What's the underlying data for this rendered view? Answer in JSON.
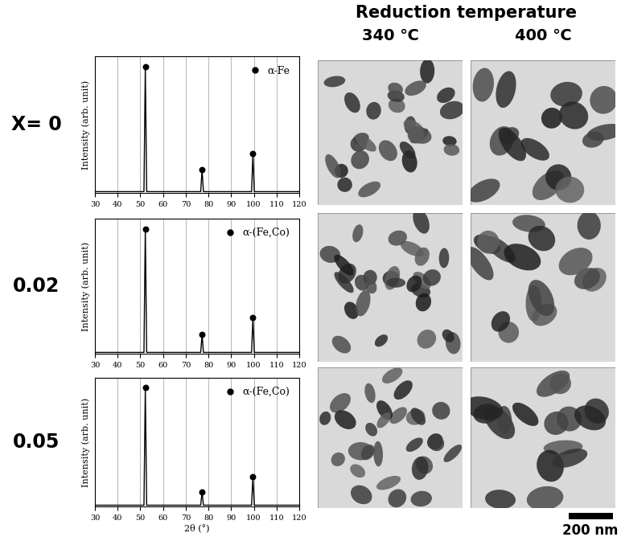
{
  "chart_data": [
    {
      "type": "line",
      "row_label": "X= 0",
      "ylabel": "Intensity (arb. unit)",
      "xlabel": null,
      "xlim": [
        30,
        120
      ],
      "xticks": [
        30,
        40,
        50,
        60,
        70,
        80,
        90,
        100,
        110,
        120
      ],
      "ylim": [
        0,
        105
      ],
      "yticks": [],
      "grid": true,
      "tick_labels": "x",
      "legend": "upper right",
      "series": [
        {
          "type": "line",
          "color": "#000000",
          "x": [
            30,
            51.6,
            52.2,
            52.8,
            76.6,
            77.2,
            77.8,
            99.0,
            99.6,
            100.2,
            120
          ],
          "values": [
            1,
            1,
            97,
            1,
            1,
            18,
            1,
            1,
            30,
            1,
            1
          ]
        },
        {
          "name": "α-Fe",
          "type": "scatter",
          "marker": "o",
          "color": "#000000",
          "x": [
            52.2,
            77.2,
            99.6
          ],
          "values": [
            97,
            18,
            30
          ]
        }
      ]
    },
    {
      "type": "line",
      "row_label": "0.02",
      "ylabel": "Intensity (arb. unit)",
      "xlabel": null,
      "xlim": [
        30,
        120
      ],
      "xticks": [
        30,
        40,
        50,
        60,
        70,
        80,
        90,
        100,
        110,
        120
      ],
      "ylim": [
        0,
        105
      ],
      "yticks": [],
      "grid": true,
      "tick_labels": "x",
      "legend": "upper right",
      "series": [
        {
          "type": "line",
          "color": "#000000",
          "x": [
            30,
            51.6,
            52.2,
            52.8,
            76.6,
            77.2,
            77.8,
            99.0,
            99.6,
            100.2,
            120
          ],
          "values": [
            1,
            1,
            97,
            1,
            1,
            15,
            1,
            1,
            28,
            1,
            1
          ]
        },
        {
          "name": "α-(Fe,Co)",
          "type": "scatter",
          "marker": "o",
          "color": "#000000",
          "x": [
            52.2,
            77.2,
            99.6
          ],
          "values": [
            97,
            15,
            28
          ]
        }
      ]
    },
    {
      "type": "line",
      "row_label": "0.05",
      "ylabel": "Intensity (arb. unit)",
      "xlabel": "2θ (°)",
      "xlim": [
        30,
        120
      ],
      "xticks": [
        30,
        40,
        50,
        60,
        70,
        80,
        90,
        100,
        110,
        120
      ],
      "ylim": [
        0,
        105
      ],
      "yticks": [],
      "grid": true,
      "tick_labels": "x",
      "legend": "upper right",
      "series": [
        {
          "type": "line",
          "color": "#000000",
          "x": [
            30,
            51.6,
            52.2,
            52.8,
            76.6,
            77.2,
            77.8,
            99.0,
            99.6,
            100.2,
            120
          ],
          "values": [
            1,
            1,
            97,
            1,
            1,
            12,
            1,
            1,
            24,
            1,
            1
          ]
        },
        {
          "name": "α-(Fe,Co)",
          "type": "scatter",
          "marker": "o",
          "color": "#000000",
          "x": [
            52.2,
            77.2,
            99.6
          ],
          "values": [
            97,
            12,
            24
          ]
        }
      ]
    }
  ],
  "column_header": "Reduction temperature",
  "column_labels": [
    "340 ℃",
    "400 ℃"
  ],
  "scale_bar": {
    "label": "200 nm"
  }
}
